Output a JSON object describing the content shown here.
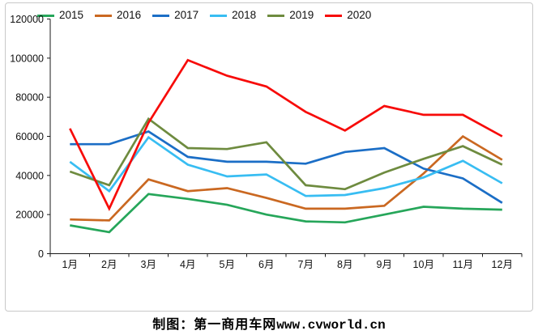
{
  "chart_data": {
    "type": "line",
    "title": "",
    "xlabel": "",
    "ylabel": "",
    "ylim": [
      0,
      120000
    ],
    "y_tick_labels": [
      "0",
      "20000",
      "40000",
      "60000",
      "80000",
      "100000",
      "120000"
    ],
    "grid": false,
    "legend_position": "top",
    "categories": [
      "1月",
      "2月",
      "3月",
      "4月",
      "5月",
      "6月",
      "7月",
      "8月",
      "9月",
      "10月",
      "11月",
      "12月"
    ],
    "series": [
      {
        "name": "2015",
        "color": "#26a65a",
        "values": [
          14500,
          11000,
          30500,
          28000,
          25000,
          20000,
          16500,
          16000,
          20000,
          24000,
          23000,
          22500
        ]
      },
      {
        "name": "2016",
        "color": "#ca6821",
        "values": [
          17500,
          17000,
          38000,
          32000,
          33500,
          28500,
          23000,
          23000,
          24500,
          41000,
          60000,
          48000
        ]
      },
      {
        "name": "2017",
        "color": "#1b6ec6",
        "values": [
          56000,
          56000,
          62500,
          49500,
          47000,
          47000,
          46000,
          52000,
          54000,
          43500,
          38500,
          26000
        ]
      },
      {
        "name": "2018",
        "color": "#38bdf2",
        "values": [
          47000,
          32000,
          59500,
          45500,
          39500,
          40500,
          29500,
          30000,
          33500,
          39000,
          47500,
          36000
        ]
      },
      {
        "name": "2019",
        "color": "#6e8b3f",
        "values": [
          42000,
          35000,
          69000,
          54000,
          53500,
          57000,
          35000,
          33000,
          41500,
          48500,
          55000,
          45500
        ]
      },
      {
        "name": "2020",
        "color": "#f70b09",
        "values": [
          64000,
          23000,
          67000,
          99000,
          91000,
          85500,
          72500,
          63000,
          75500,
          71000,
          71000,
          60000
        ]
      }
    ]
  },
  "footer": {
    "credit_cjk": "制图：第一商用车网",
    "credit_url": "www.cvworld.cn"
  }
}
